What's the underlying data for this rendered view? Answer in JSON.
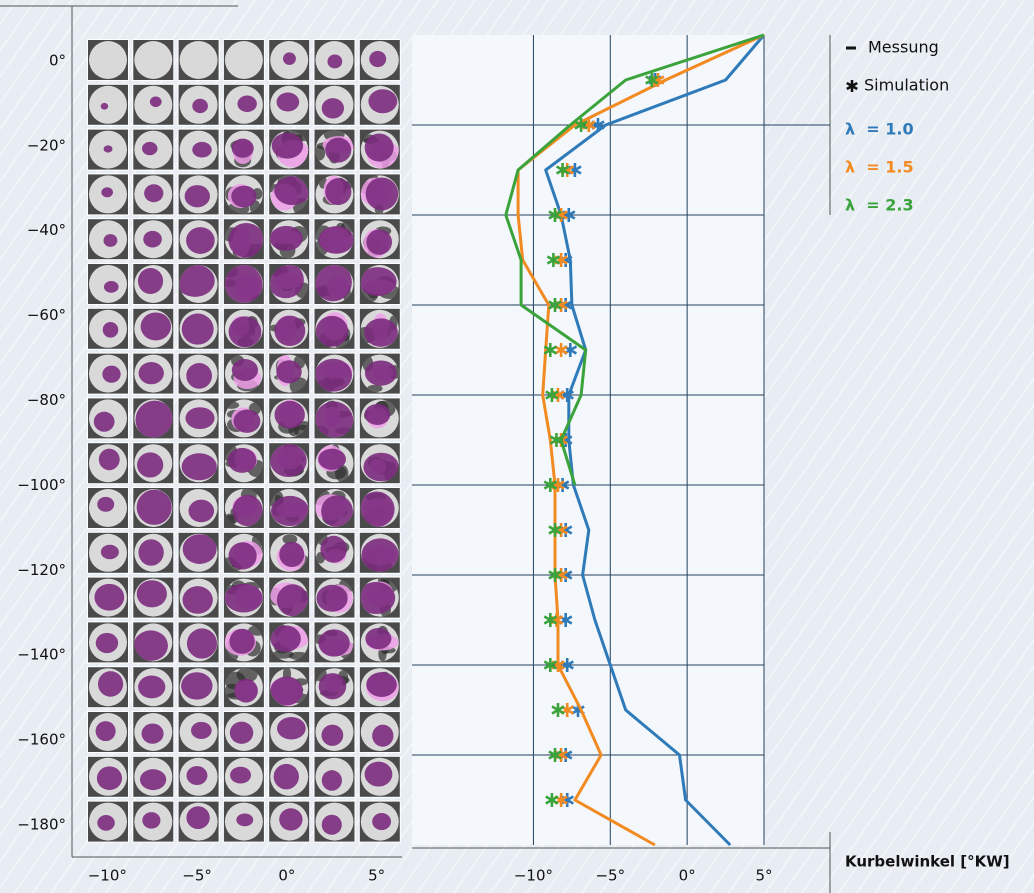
{
  "chart_data": [
    {
      "type": "image-grid",
      "xlim": [
        -11.8,
        6.3
      ],
      "xticks": [
        {
          "value": -10,
          "label": "−10°"
        },
        {
          "value": -5,
          "label": "−5°"
        },
        {
          "value": 0,
          "label": "0°"
        },
        {
          "value": 5,
          "label": "5°"
        }
      ],
      "ylim": [
        5.4,
        -184.7
      ],
      "yticks": [
        {
          "value": 0,
          "label": "0°"
        },
        {
          "value": -20,
          "label": "−20°"
        },
        {
          "value": -40,
          "label": "−40°"
        },
        {
          "value": -60,
          "label": "−60°"
        },
        {
          "value": -80,
          "label": "−80°"
        },
        {
          "value": -100,
          "label": "−100°"
        },
        {
          "value": -120,
          "label": "−120°"
        },
        {
          "value": -140,
          "label": "−140°"
        },
        {
          "value": -160,
          "label": "−160°"
        },
        {
          "value": -180,
          "label": "−180°"
        }
      ]
    },
    {
      "type": "line",
      "axis_label": "Kurbelwinkel [°KW]",
      "legend": [
        "Messung",
        "Simulation"
      ],
      "y": [
        0,
        -10,
        -20,
        -30,
        -40,
        -50,
        -60,
        -70,
        -80,
        -90,
        -100,
        -110,
        -120,
        -130,
        -140,
        -150,
        -160,
        -170,
        -180
      ],
      "xlim": [
        -17.9,
        5
      ],
      "xticks": [
        {
          "value": -10,
          "label": "−10°"
        },
        {
          "value": -5,
          "label": "−5°"
        },
        {
          "value": 0,
          "label": "0°"
        },
        {
          "value": 5,
          "label": "5°"
        }
      ],
      "ylim": [
        0,
        -180
      ],
      "yticks": [
        -20,
        -40,
        -60,
        -80,
        -100,
        -120,
        -140,
        -160
      ],
      "grid": true,
      "series": [
        {
          "name": "λ  = 1.0",
          "color": "#2f7ab9",
          "values": [
            5.0,
            2.5,
            -5.3,
            -9.2,
            -8.2,
            -7.6,
            -7.5,
            -6.6,
            -7.7,
            -7.7,
            -7.4,
            -6.4,
            -6.8,
            -6.0,
            -5.0,
            -4.0,
            -0.5,
            -0.1,
            2.8
          ],
          "simulation": [
            null,
            -2.1,
            -5.8,
            -7.3,
            -7.7,
            -7.9,
            -7.9,
            -7.6,
            -7.8,
            -7.9,
            -8.1,
            -7.9,
            -7.9,
            -7.9,
            -7.8,
            -7.1,
            -7.9,
            -7.8,
            null
          ]
        },
        {
          "name": "λ  = 1.5",
          "color": "#f28a22",
          "values": [
            5.0,
            -1.4,
            -7.3,
            -11.0,
            -11.0,
            -10.7,
            -9.0,
            -9.2,
            -9.4,
            -8.9,
            -8.6,
            -8.6,
            -8.6,
            -8.4,
            -8.4,
            -6.9,
            -5.6,
            -7.3,
            -2.1
          ],
          "simulation": [
            null,
            -1.9,
            -6.4,
            -7.8,
            -8.2,
            -8.2,
            -8.2,
            -8.2,
            -8.4,
            -8.2,
            -8.4,
            -8.2,
            -8.2,
            -8.5,
            -8.4,
            -7.8,
            -8.2,
            -8.2,
            null
          ]
        },
        {
          "name": "λ  = 2.3",
          "color": "#3ba33b",
          "values": [
            5.0,
            -4.0,
            -7.6,
            -11.0,
            -11.8,
            -10.8,
            -10.8,
            -6.6,
            -6.9,
            -8.2,
            -7.3,
            null,
            null,
            null,
            null,
            null,
            null,
            null,
            null
          ],
          "simulation": [
            null,
            -2.3,
            -6.9,
            -8.1,
            -8.6,
            -8.7,
            -8.6,
            -8.9,
            -8.8,
            -8.5,
            -8.9,
            -8.6,
            -8.6,
            -8.9,
            -8.9,
            -8.4,
            -8.6,
            -8.8,
            null
          ]
        }
      ]
    }
  ]
}
